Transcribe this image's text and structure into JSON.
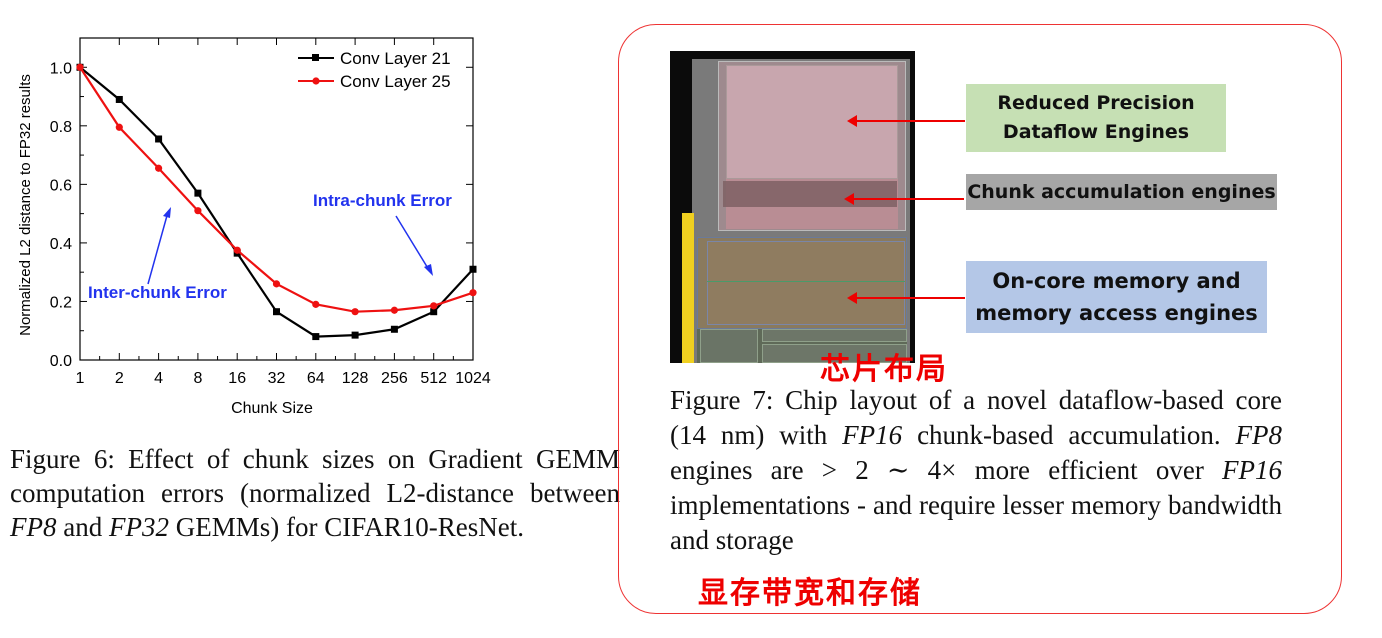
{
  "figure6": {
    "chart_data": {
      "type": "line",
      "xlabel": "Chunk Size",
      "ylabel": "Normalized L2 distance to FP32 results",
      "x_ticks": [
        "1",
        "2",
        "4",
        "8",
        "16",
        "32",
        "64",
        "128",
        "256",
        "512",
        "1024"
      ],
      "y_ticks": [
        "0.0",
        "0.2",
        "0.4",
        "0.6",
        "0.8",
        "1.0"
      ],
      "ylim": [
        0,
        1.1
      ],
      "legend_position": "top-right",
      "series": [
        {
          "name": "Conv Layer 21",
          "color": "#000000",
          "marker": "square",
          "values": [
            1.0,
            0.89,
            0.755,
            0.57,
            0.365,
            0.165,
            0.08,
            0.085,
            0.105,
            0.165,
            0.31
          ]
        },
        {
          "name": "Conv Layer 25",
          "color": "#ee1111",
          "marker": "circle",
          "values": [
            1.0,
            0.795,
            0.655,
            0.51,
            0.375,
            0.26,
            0.19,
            0.165,
            0.17,
            0.185,
            0.23
          ]
        }
      ],
      "annotations": [
        {
          "text": "Inter-chunk Error",
          "color": "#2233ee"
        },
        {
          "text": "Intra-chunk Error",
          "color": "#2233ee"
        }
      ]
    },
    "caption": {
      "a": "Figure 6:  Effect of chunk sizes on Gradient GEMM computation errors (normalized L2-distance between ",
      "fp8": "FP8",
      "b": " and ",
      "fp32": "FP32",
      "c": " GEMMs) for CIFAR10-ResNet."
    }
  },
  "figure7": {
    "labels": {
      "reduced": "Reduced Precision Dataflow Engines",
      "chunk": "Chunk accumulation engines",
      "oncore": "On-core memory and memory access engines"
    },
    "label_colors": {
      "reduced": "#c6e0b4",
      "chunk": "#a6a6a6",
      "oncore": "#b4c7e7"
    },
    "handwritten_top": "芯片布局",
    "caption": {
      "a": "Figure 7: Chip layout of a novel dataflow-based core (14 nm) with ",
      "fp16": "FP16",
      "b": " chunk-based accumulation. ",
      "fp8": "FP8",
      "c": " engines are > 2 ∼ 4× more efficient over ",
      "fp16b": "FP16",
      "d": " implementations - and require lesser memory bandwidth and storage"
    },
    "handwritten_bottom": "显存带宽和存储"
  }
}
